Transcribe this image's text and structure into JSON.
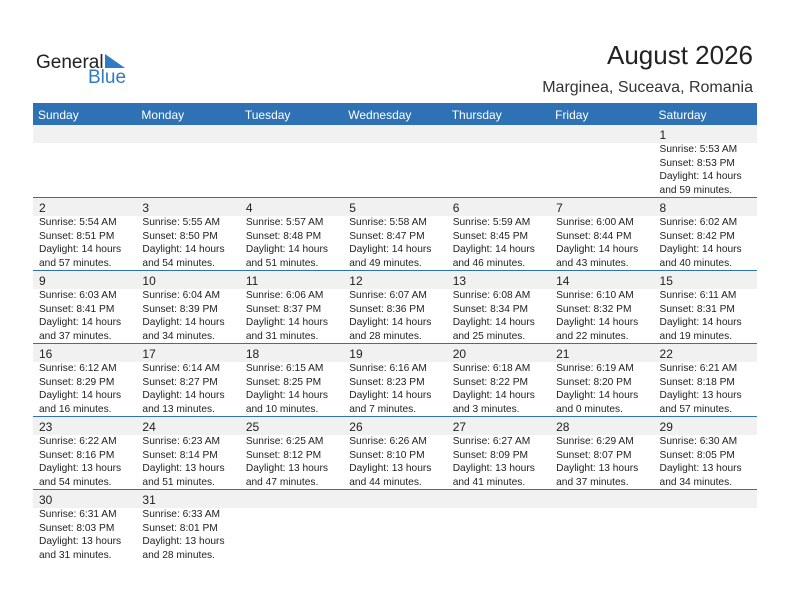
{
  "logo": {
    "general": "General",
    "blue": "Blue"
  },
  "title": "August 2026",
  "location": "Marginea, Suceava, Romania",
  "days": [
    "Sunday",
    "Monday",
    "Tuesday",
    "Wednesday",
    "Thursday",
    "Friday",
    "Saturday"
  ],
  "weeks": [
    [
      null,
      null,
      null,
      null,
      null,
      null,
      {
        "d": "1",
        "sr": "Sunrise: 5:53 AM",
        "ss": "Sunset: 8:53 PM",
        "dl": "Daylight: 14 hours",
        "dm": "and 59 minutes."
      }
    ],
    [
      {
        "d": "2",
        "sr": "Sunrise: 5:54 AM",
        "ss": "Sunset: 8:51 PM",
        "dl": "Daylight: 14 hours",
        "dm": "and 57 minutes."
      },
      {
        "d": "3",
        "sr": "Sunrise: 5:55 AM",
        "ss": "Sunset: 8:50 PM",
        "dl": "Daylight: 14 hours",
        "dm": "and 54 minutes."
      },
      {
        "d": "4",
        "sr": "Sunrise: 5:57 AM",
        "ss": "Sunset: 8:48 PM",
        "dl": "Daylight: 14 hours",
        "dm": "and 51 minutes."
      },
      {
        "d": "5",
        "sr": "Sunrise: 5:58 AM",
        "ss": "Sunset: 8:47 PM",
        "dl": "Daylight: 14 hours",
        "dm": "and 49 minutes."
      },
      {
        "d": "6",
        "sr": "Sunrise: 5:59 AM",
        "ss": "Sunset: 8:45 PM",
        "dl": "Daylight: 14 hours",
        "dm": "and 46 minutes."
      },
      {
        "d": "7",
        "sr": "Sunrise: 6:00 AM",
        "ss": "Sunset: 8:44 PM",
        "dl": "Daylight: 14 hours",
        "dm": "and 43 minutes."
      },
      {
        "d": "8",
        "sr": "Sunrise: 6:02 AM",
        "ss": "Sunset: 8:42 PM",
        "dl": "Daylight: 14 hours",
        "dm": "and 40 minutes."
      }
    ],
    [
      {
        "d": "9",
        "sr": "Sunrise: 6:03 AM",
        "ss": "Sunset: 8:41 PM",
        "dl": "Daylight: 14 hours",
        "dm": "and 37 minutes."
      },
      {
        "d": "10",
        "sr": "Sunrise: 6:04 AM",
        "ss": "Sunset: 8:39 PM",
        "dl": "Daylight: 14 hours",
        "dm": "and 34 minutes."
      },
      {
        "d": "11",
        "sr": "Sunrise: 6:06 AM",
        "ss": "Sunset: 8:37 PM",
        "dl": "Daylight: 14 hours",
        "dm": "and 31 minutes."
      },
      {
        "d": "12",
        "sr": "Sunrise: 6:07 AM",
        "ss": "Sunset: 8:36 PM",
        "dl": "Daylight: 14 hours",
        "dm": "and 28 minutes."
      },
      {
        "d": "13",
        "sr": "Sunrise: 6:08 AM",
        "ss": "Sunset: 8:34 PM",
        "dl": "Daylight: 14 hours",
        "dm": "and 25 minutes."
      },
      {
        "d": "14",
        "sr": "Sunrise: 6:10 AM",
        "ss": "Sunset: 8:32 PM",
        "dl": "Daylight: 14 hours",
        "dm": "and 22 minutes."
      },
      {
        "d": "15",
        "sr": "Sunrise: 6:11 AM",
        "ss": "Sunset: 8:31 PM",
        "dl": "Daylight: 14 hours",
        "dm": "and 19 minutes."
      }
    ],
    [
      {
        "d": "16",
        "sr": "Sunrise: 6:12 AM",
        "ss": "Sunset: 8:29 PM",
        "dl": "Daylight: 14 hours",
        "dm": "and 16 minutes."
      },
      {
        "d": "17",
        "sr": "Sunrise: 6:14 AM",
        "ss": "Sunset: 8:27 PM",
        "dl": "Daylight: 14 hours",
        "dm": "and 13 minutes."
      },
      {
        "d": "18",
        "sr": "Sunrise: 6:15 AM",
        "ss": "Sunset: 8:25 PM",
        "dl": "Daylight: 14 hours",
        "dm": "and 10 minutes."
      },
      {
        "d": "19",
        "sr": "Sunrise: 6:16 AM",
        "ss": "Sunset: 8:23 PM",
        "dl": "Daylight: 14 hours",
        "dm": "and 7 minutes."
      },
      {
        "d": "20",
        "sr": "Sunrise: 6:18 AM",
        "ss": "Sunset: 8:22 PM",
        "dl": "Daylight: 14 hours",
        "dm": "and 3 minutes."
      },
      {
        "d": "21",
        "sr": "Sunrise: 6:19 AM",
        "ss": "Sunset: 8:20 PM",
        "dl": "Daylight: 14 hours",
        "dm": "and 0 minutes."
      },
      {
        "d": "22",
        "sr": "Sunrise: 6:21 AM",
        "ss": "Sunset: 8:18 PM",
        "dl": "Daylight: 13 hours",
        "dm": "and 57 minutes."
      }
    ],
    [
      {
        "d": "23",
        "sr": "Sunrise: 6:22 AM",
        "ss": "Sunset: 8:16 PM",
        "dl": "Daylight: 13 hours",
        "dm": "and 54 minutes."
      },
      {
        "d": "24",
        "sr": "Sunrise: 6:23 AM",
        "ss": "Sunset: 8:14 PM",
        "dl": "Daylight: 13 hours",
        "dm": "and 51 minutes."
      },
      {
        "d": "25",
        "sr": "Sunrise: 6:25 AM",
        "ss": "Sunset: 8:12 PM",
        "dl": "Daylight: 13 hours",
        "dm": "and 47 minutes."
      },
      {
        "d": "26",
        "sr": "Sunrise: 6:26 AM",
        "ss": "Sunset: 8:10 PM",
        "dl": "Daylight: 13 hours",
        "dm": "and 44 minutes."
      },
      {
        "d": "27",
        "sr": "Sunrise: 6:27 AM",
        "ss": "Sunset: 8:09 PM",
        "dl": "Daylight: 13 hours",
        "dm": "and 41 minutes."
      },
      {
        "d": "28",
        "sr": "Sunrise: 6:29 AM",
        "ss": "Sunset: 8:07 PM",
        "dl": "Daylight: 13 hours",
        "dm": "and 37 minutes."
      },
      {
        "d": "29",
        "sr": "Sunrise: 6:30 AM",
        "ss": "Sunset: 8:05 PM",
        "dl": "Daylight: 13 hours",
        "dm": "and 34 minutes."
      }
    ],
    [
      {
        "d": "30",
        "sr": "Sunrise: 6:31 AM",
        "ss": "Sunset: 8:03 PM",
        "dl": "Daylight: 13 hours",
        "dm": "and 31 minutes."
      },
      {
        "d": "31",
        "sr": "Sunrise: 6:33 AM",
        "ss": "Sunset: 8:01 PM",
        "dl": "Daylight: 13 hours",
        "dm": "and 28 minutes."
      },
      null,
      null,
      null,
      null,
      null
    ]
  ]
}
